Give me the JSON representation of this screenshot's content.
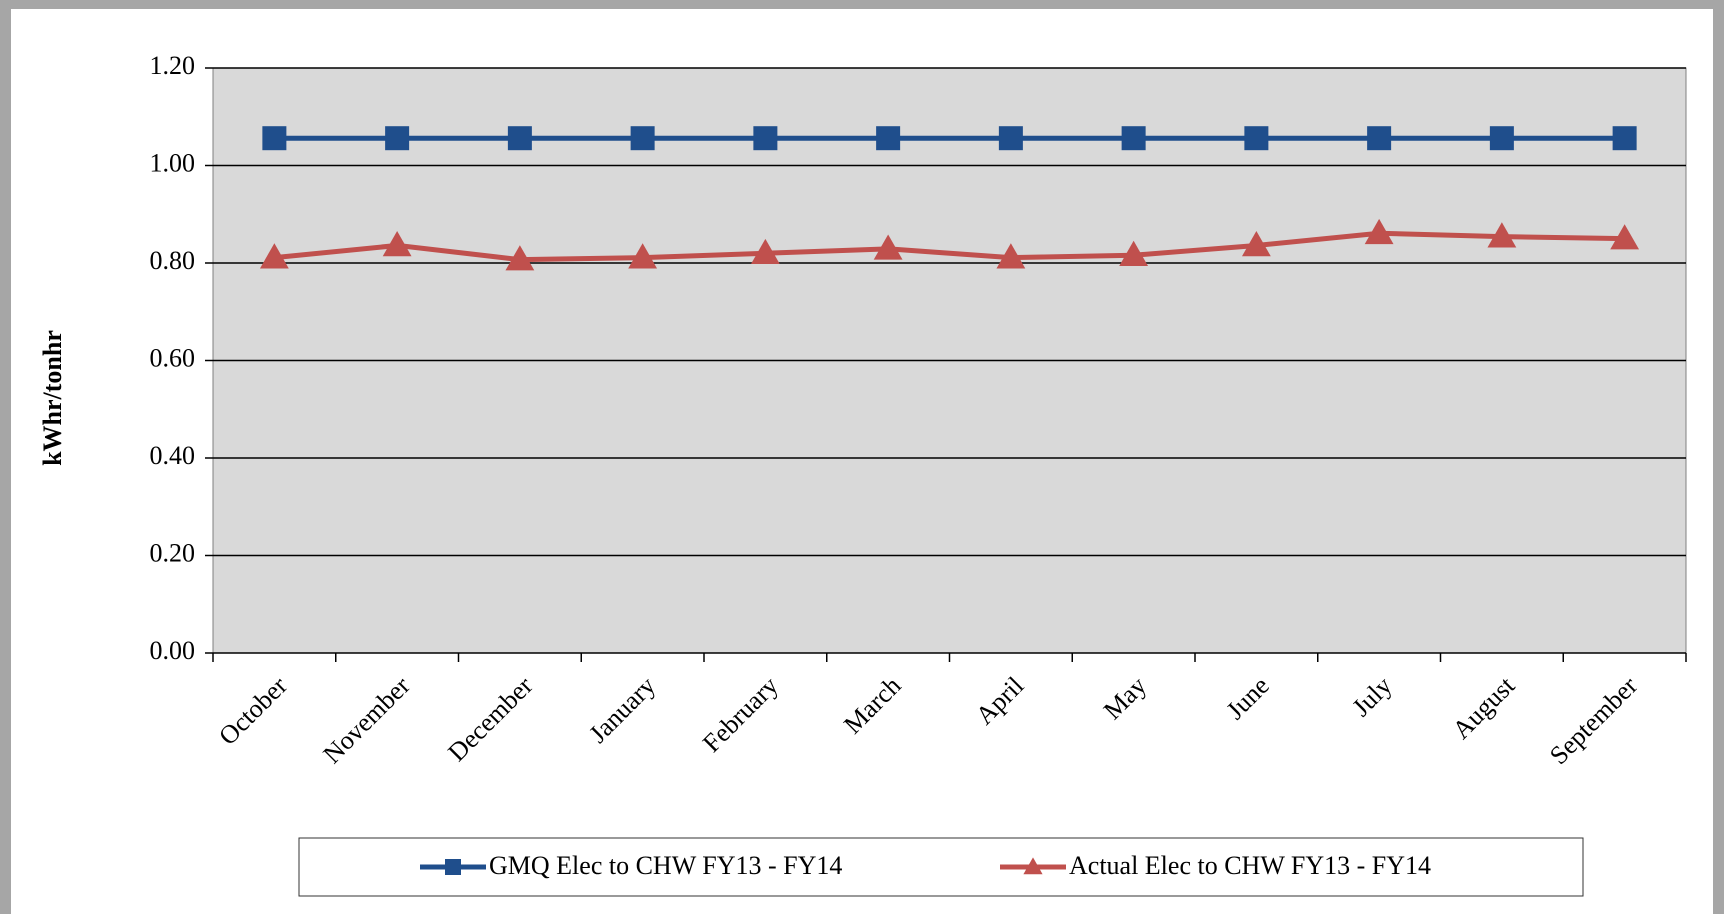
{
  "chart_data": {
    "type": "line",
    "y_label": "kWhr/tonhr",
    "categories": [
      "October",
      "November",
      "December",
      "January",
      "February",
      "March",
      "April",
      "May",
      "June",
      "July",
      "August",
      "September"
    ],
    "series": [
      {
        "name": "GMQ Elec to CHW FY13 - FY14",
        "color": "#1f4e8c",
        "marker": "square",
        "values": [
          1.056,
          1.056,
          1.056,
          1.056,
          1.056,
          1.056,
          1.056,
          1.056,
          1.056,
          1.056,
          1.056,
          1.056
        ]
      },
      {
        "name": "Actual Elec to CHW FY13 - FY14",
        "color": "#c0504d",
        "marker": "triangle",
        "values": [
          0.811,
          0.836,
          0.807,
          0.811,
          0.82,
          0.829,
          0.811,
          0.816,
          0.836,
          0.861,
          0.854,
          0.85
        ]
      }
    ],
    "ylim": [
      0,
      1.2
    ],
    "yticks": [
      {
        "value": 0,
        "label": "0.00"
      },
      {
        "value": 0.2,
        "label": "0.20"
      },
      {
        "value": 0.4,
        "label": "0.40"
      },
      {
        "value": 0.6,
        "label": "0.60"
      },
      {
        "value": 0.8,
        "label": "0.80"
      },
      {
        "value": 1.0,
        "label": "1.00"
      },
      {
        "value": 1.2,
        "label": "1.20"
      }
    ],
    "grid": true,
    "legend": "bottom"
  }
}
